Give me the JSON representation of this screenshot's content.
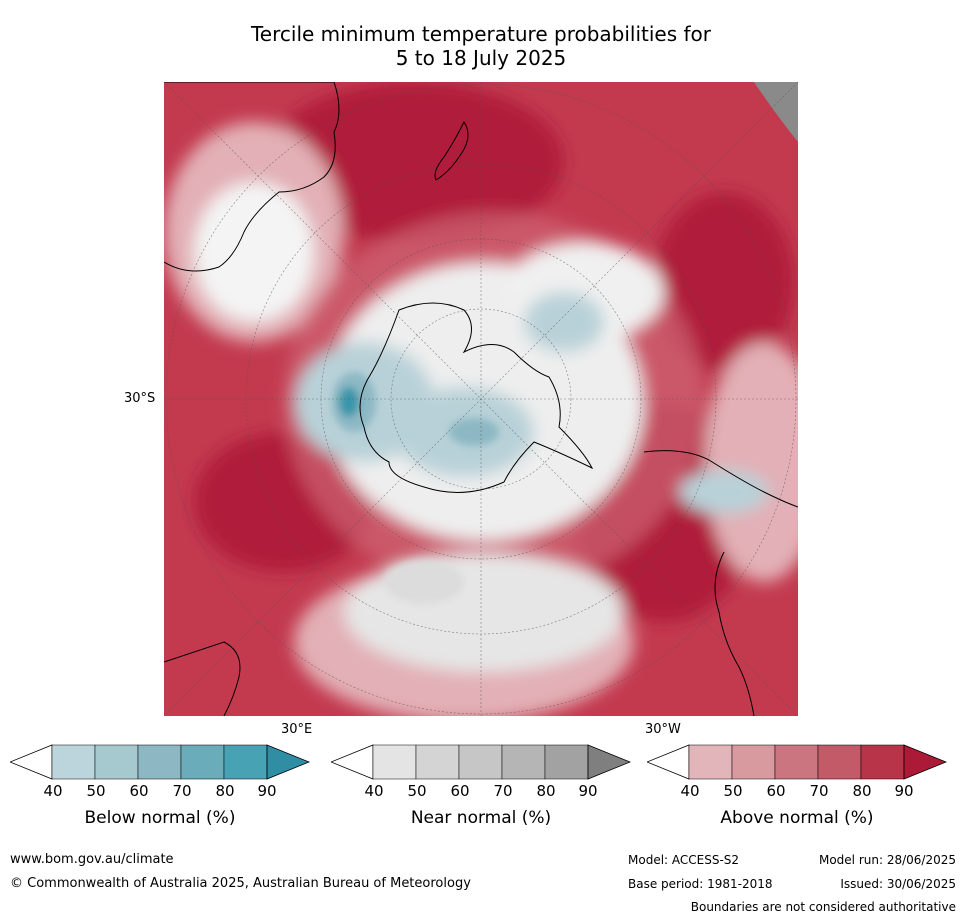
{
  "title_line1": "Tercile minimum temperature probabilities for",
  "title_line2": "5 to 18 July 2025",
  "map": {
    "lat_label": "30°S",
    "lon_label_left": "30°E",
    "lon_label_right": "30°W",
    "colors": {
      "above_90": "#b01c3a",
      "above_80": "#c33a4f",
      "above_60": "#cf6574",
      "above_40": "#e2b0b6",
      "near": "#dcdcdc",
      "below_50": "#b8d1d8",
      "below_70": "#8cb8c4",
      "below_90": "#3795a8",
      "no_data": "#8a8a8a"
    }
  },
  "legend": {
    "ticks": [
      "40",
      "50",
      "60",
      "70",
      "80",
      "90"
    ],
    "below": {
      "label": "Below normal (%)",
      "colors": [
        "#ffffff",
        "#bcd5dc",
        "#a6c8cf",
        "#8cb7c3",
        "#6aacb9",
        "#47a3b3",
        "#2f8ea3"
      ]
    },
    "near": {
      "label": "Near normal (%)",
      "colors": [
        "#ffffff",
        "#e4e4e4",
        "#d4d4d4",
        "#c6c6c6",
        "#b5b5b5",
        "#a2a2a2",
        "#7f7f7f"
      ]
    },
    "above": {
      "label": "Above normal (%)",
      "colors": [
        "#ffffff",
        "#e2b5ba",
        "#d8999f",
        "#cb7580",
        "#c25a68",
        "#b83449",
        "#ad1a37"
      ]
    }
  },
  "footer": {
    "website": "www.bom.gov.au/climate",
    "copyright": "© Commonwealth of Australia 2025, Australian Bureau of Meteorology",
    "model": "Model: ACCESS-S2",
    "base_period": "Base period: 1981-2018",
    "model_run": "Model run: 28/06/2025",
    "issued": "Issued: 30/06/2025",
    "disclaimer": "Boundaries are not considered authoritative"
  }
}
